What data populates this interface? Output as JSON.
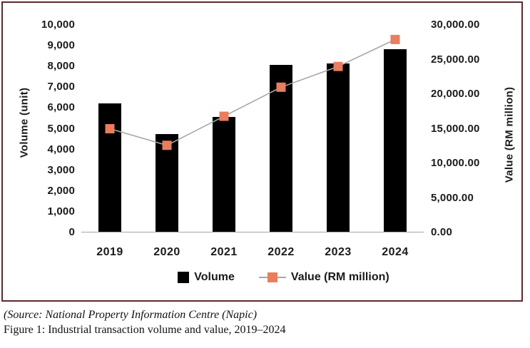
{
  "chart_data": {
    "type": "bar",
    "subtype": "combo-bar-line-dual-axis",
    "categories": [
      "2019",
      "2020",
      "2021",
      "2022",
      "2023",
      "2024"
    ],
    "series": [
      {
        "name": "Volume",
        "type": "bar",
        "axis": "left",
        "values": [
          6200,
          4700,
          5550,
          8050,
          8100,
          8800
        ]
      },
      {
        "name": "Value (RM million)",
        "type": "line",
        "axis": "right",
        "values": [
          15000,
          12600,
          16800,
          21000,
          24000,
          27900
        ]
      }
    ],
    "left_axis": {
      "title": "Volume (unit)",
      "min": 0,
      "max": 10000,
      "tick_step": 1000,
      "tick_labels": [
        "0",
        "1,000",
        "2,000",
        "3,000",
        "4,000",
        "5,000",
        "6,000",
        "7,000",
        "8,000",
        "9,000",
        "10,000"
      ]
    },
    "right_axis": {
      "title": "Value (RM million)",
      "min": 0,
      "max": 30000,
      "tick_step": 5000,
      "tick_labels": [
        "0.00",
        "5,000.00",
        "10,000.00",
        "15,000.00",
        "20,000.00",
        "25,000.00",
        "30,000.00"
      ]
    },
    "legend": [
      "Volume",
      "Value (RM million)"
    ],
    "legend_position": "bottom",
    "grid": false
  },
  "caption": {
    "source": "(Source: National Property Information Centre (Napic)",
    "figure": "Figure 1: Industrial transaction volume and value, 2019–2024"
  },
  "colors": {
    "bar": "#000000",
    "marker": "#e87e5d",
    "line": "#a6a6a6",
    "frame_border": "#5c2a2e",
    "text": "#1a1a1a"
  }
}
